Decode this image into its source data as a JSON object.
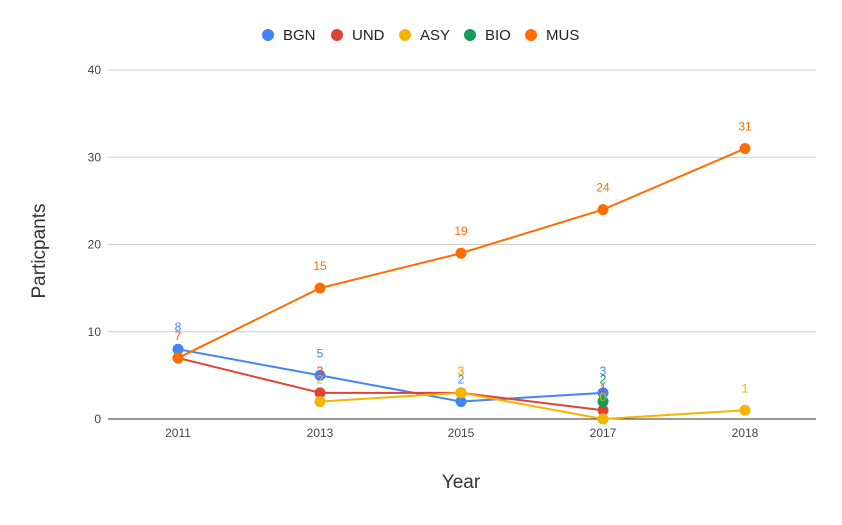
{
  "chart_data": {
    "type": "line",
    "title": "",
    "xlabel": "Year",
    "ylabel": "Particpants",
    "x": [
      "2011",
      "2013",
      "2015",
      "2017",
      "2018"
    ],
    "ylim": [
      0,
      40
    ],
    "yticks": [
      "0",
      "10",
      "20",
      "30",
      "40"
    ],
    "grid": true,
    "legend_position": "top",
    "series": [
      {
        "name": "BGN",
        "color": "#4285f4",
        "values": [
          8,
          5,
          2,
          3,
          null
        ]
      },
      {
        "name": "UND",
        "color": "#db4437",
        "values": [
          7,
          3,
          3,
          1,
          null
        ]
      },
      {
        "name": "ASY",
        "color": "#f4b400",
        "values": [
          null,
          2,
          3,
          0,
          1
        ]
      },
      {
        "name": "BIO",
        "color": "#0f9d58",
        "values": [
          null,
          null,
          null,
          2,
          null
        ]
      },
      {
        "name": "MUS",
        "color": "#ff6d01",
        "values": [
          7,
          15,
          19,
          24,
          31
        ]
      }
    ]
  }
}
